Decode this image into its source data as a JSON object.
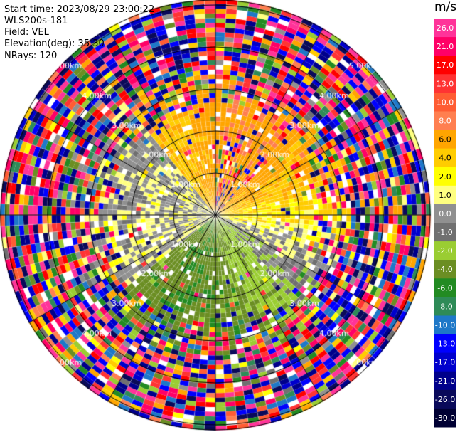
{
  "header": {
    "start_time": "Start time: 2023/08/29 23:00:22",
    "instrument": "WLS200s-181",
    "field": "Field: VEL",
    "elevation": "Elevation(deg): 35.30",
    "nrays": "NRays: 120"
  },
  "colorbar": {
    "unit": "m/s",
    "ticks": [
      "26.0",
      "21.0",
      "17.0",
      "13.0",
      "10.0",
      "8.0",
      "6.0",
      "4.0",
      "2.0",
      "1.0",
      "0.0",
      "-1.0",
      "-2.0",
      "-4.0",
      "-6.0",
      "-8.0",
      "-10.0",
      "-13.0",
      "-17.0",
      "-21.0",
      "-26.0",
      "-30.0"
    ],
    "colors": [
      "#ff3399",
      "#ff0066",
      "#ff0000",
      "#ff3333",
      "#ff5c33",
      "#ff7f50",
      "#ffa500",
      "#ffcc00",
      "#ffff00",
      "#ffff80",
      "#909090",
      "#707070",
      "#9acd32",
      "#6b8e23",
      "#228b22",
      "#2e8b57",
      "#1e78c8",
      "#0000ff",
      "#0000cd",
      "#00008b",
      "#0a0a5a",
      "#000033"
    ]
  },
  "chart_data": {
    "type": "heatmap",
    "field": "VEL",
    "nrays": 120,
    "elevation_deg": 35.3,
    "range_ring_labels_km": [
      "1.00km",
      "2.00km",
      "3.00km",
      "4.00km",
      "5.00km"
    ],
    "range_rings_km": [
      1,
      2,
      3,
      4,
      5
    ],
    "velocity_range_ms": [
      -30,
      26
    ],
    "wind_pattern": {
      "north_east_sector": "positive velocities (yellow/orange, 2 to 8 m/s)",
      "south_sector": "negative velocities (green, -4 to -8 m/s)",
      "west_sector": "near zero (grey, 0 to -1 m/s)",
      "beyond_3km": "noisy / random values across full scale"
    }
  }
}
